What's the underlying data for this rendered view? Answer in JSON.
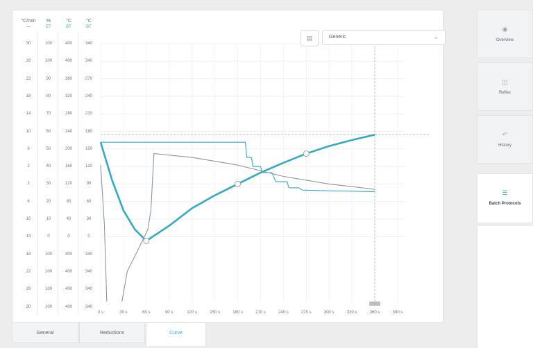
{
  "axes_columns": [
    {
      "unit": "°C/min",
      "sub": "—",
      "ticks": [
        "30",
        "26",
        "22",
        "18",
        "14",
        "10",
        "6",
        "2",
        "2",
        "6",
        "10",
        "14",
        "18",
        "22",
        "26",
        "30"
      ],
      "sub_color": "#5b6670"
    },
    {
      "unit": "%",
      "sub": "ET",
      "ticks": [
        "100",
        "100",
        "90",
        "80",
        "70",
        "60",
        "50",
        "40",
        "30",
        "20",
        "10",
        "0",
        "100",
        "100",
        "100",
        "100"
      ],
      "sub_color": "#33b3cc"
    },
    {
      "unit": "°C",
      "sub": "BT",
      "ticks": [
        "400",
        "400",
        "360",
        "320",
        "280",
        "240",
        "200",
        "160",
        "120",
        "80",
        "40",
        "0",
        "400",
        "400",
        "400",
        "400"
      ],
      "sub_color": "#33b3cc"
    },
    {
      "unit": "°C",
      "sub": "BT",
      "ticks": [
        "340",
        "340",
        "270",
        "240",
        "210",
        "180",
        "150",
        "120",
        "90",
        "60",
        "30",
        "0",
        "340",
        "340",
        "340",
        "340"
      ],
      "sub_color": "#33b3cc"
    }
  ],
  "profile": {
    "label": "Generic"
  },
  "chart_data": {
    "type": "line",
    "x_ticks": [
      "0 s",
      "30 s",
      "60 s",
      "90 s",
      "120 s",
      "150 s",
      "180 s",
      "210 s",
      "240 s",
      "270 s",
      "300 s",
      "330 s",
      "360 s",
      "390 s"
    ],
    "xlim": [
      0,
      390
    ],
    "y_ticks": [
      "340",
      "340",
      "270",
      "240",
      "210",
      "180",
      "150",
      "120",
      "90",
      "60",
      "30",
      "0"
    ],
    "ylim": [
      0,
      340
    ],
    "series": [
      {
        "color": "#33a9c6",
        "points": [
          [
            0,
            210
          ],
          [
            15,
            160
          ],
          [
            30,
            120
          ],
          [
            45,
            95
          ],
          [
            60,
            80
          ],
          [
            90,
            100
          ],
          [
            120,
            123
          ],
          [
            150,
            140
          ],
          [
            180,
            155
          ],
          [
            210,
            170
          ],
          [
            240,
            183
          ],
          [
            270,
            195
          ],
          [
            300,
            205
          ],
          [
            330,
            213
          ],
          [
            360,
            220
          ]
        ]
      },
      {
        "color": "#33a9c6",
        "points": [
          [
            0,
            210
          ],
          [
            190,
            210
          ],
          [
            192,
            190
          ],
          [
            198,
            190
          ],
          [
            200,
            178
          ],
          [
            210,
            178
          ],
          [
            212,
            170
          ],
          [
            225,
            170
          ],
          [
            230,
            158
          ],
          [
            245,
            158
          ],
          [
            247,
            150
          ],
          [
            260,
            150
          ],
          [
            265,
            147
          ],
          [
            300,
            146
          ],
          [
            360,
            145
          ]
        ]
      },
      {
        "color": "#8e959c",
        "points": [
          [
            0,
            180
          ],
          [
            5,
            100
          ],
          [
            8,
            0
          ]
        ]
      },
      {
        "color": "#8e959c",
        "points": [
          [
            28,
            0
          ],
          [
            35,
            40
          ],
          [
            50,
            70
          ],
          [
            62,
            95
          ],
          [
            66,
            120
          ],
          [
            70,
            195
          ],
          [
            120,
            190
          ],
          [
            180,
            180
          ],
          [
            240,
            165
          ],
          [
            300,
            155
          ],
          [
            360,
            148
          ]
        ]
      }
    ],
    "markers": [
      [
        60,
        80
      ],
      [
        180,
        155
      ],
      [
        270,
        195
      ]
    ],
    "guides": {
      "y": 220,
      "x": 360
    }
  },
  "tabs": [
    {
      "label": "General"
    },
    {
      "label": "Reductions"
    },
    {
      "label": "Curve"
    }
  ],
  "sidebar": [
    {
      "label": "Overview",
      "icon": "eye-icon"
    },
    {
      "label": "Reflex",
      "icon": "reflex-icon"
    },
    {
      "label": "History",
      "icon": "history-icon"
    },
    {
      "label": "Batch Protocols",
      "icon": "list-icon"
    }
  ]
}
